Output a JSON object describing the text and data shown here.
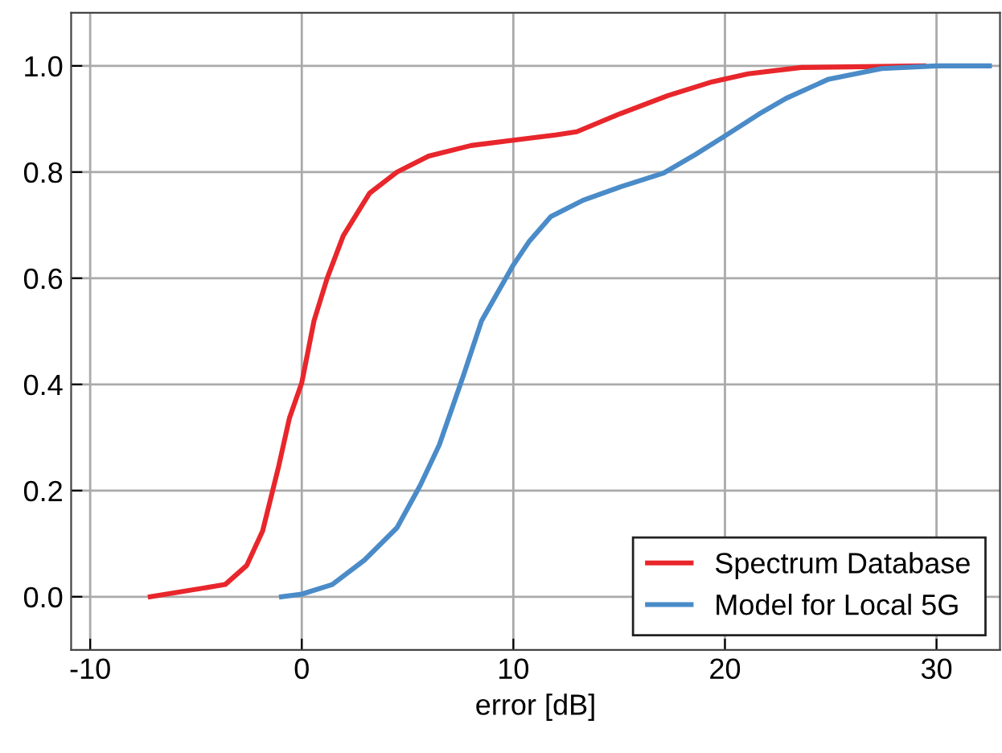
{
  "chart_data": {
    "type": "line",
    "xlabel": "error [dB]",
    "xlim": [
      -10.9,
      33
    ],
    "ylim": [
      -0.1,
      1.1
    ],
    "xticks": [
      -10,
      0,
      10,
      20,
      30
    ],
    "yticks": [
      {
        "value": 0,
        "label": "0.0"
      },
      0.2,
      0.4,
      0.6,
      0.8,
      {
        "value": 1,
        "label": "1.0"
      }
    ],
    "grid": true,
    "legend": "bottom right",
    "marker": "none",
    "line_style": "solid",
    "series": [
      {
        "name": "Spectrum Database",
        "color": "#e8262b",
        "x": [
          -7.16,
          -3.62,
          -2.6,
          -1.85,
          -1.09,
          -0.58,
          0,
          0.58,
          1.2,
          1.96,
          3.2,
          4.5,
          6.0,
          8.0,
          10,
          12.0,
          13.0,
          15.05,
          17.3,
          19.4,
          21.1,
          23.6,
          29.4
        ],
        "values": [
          0,
          0.023,
          0.059,
          0.124,
          0.246,
          0.337,
          0.403,
          0.52,
          0.6,
          0.68,
          0.76,
          0.8,
          0.83,
          0.85,
          0.86,
          0.87,
          0.876,
          0.91,
          0.944,
          0.97,
          0.985,
          0.997,
          1.0
        ]
      },
      {
        "name": "Model for Local 5G",
        "color": "#4a8bc8",
        "x": [
          -0.96,
          0,
          1.44,
          2.96,
          4.5,
          5.6,
          6.5,
          7.65,
          8.5,
          10,
          10.76,
          11.77,
          13.3,
          15.05,
          17.1,
          18.6,
          20,
          21.6,
          22.9,
          24.9,
          27.4,
          30,
          32.5
        ],
        "values": [
          0,
          0.005,
          0.023,
          0.069,
          0.13,
          0.21,
          0.286,
          0.418,
          0.52,
          0.625,
          0.67,
          0.716,
          0.747,
          0.772,
          0.798,
          0.833,
          0.868,
          0.909,
          0.939,
          0.975,
          0.995,
          1.0,
          1.0
        ]
      }
    ]
  }
}
